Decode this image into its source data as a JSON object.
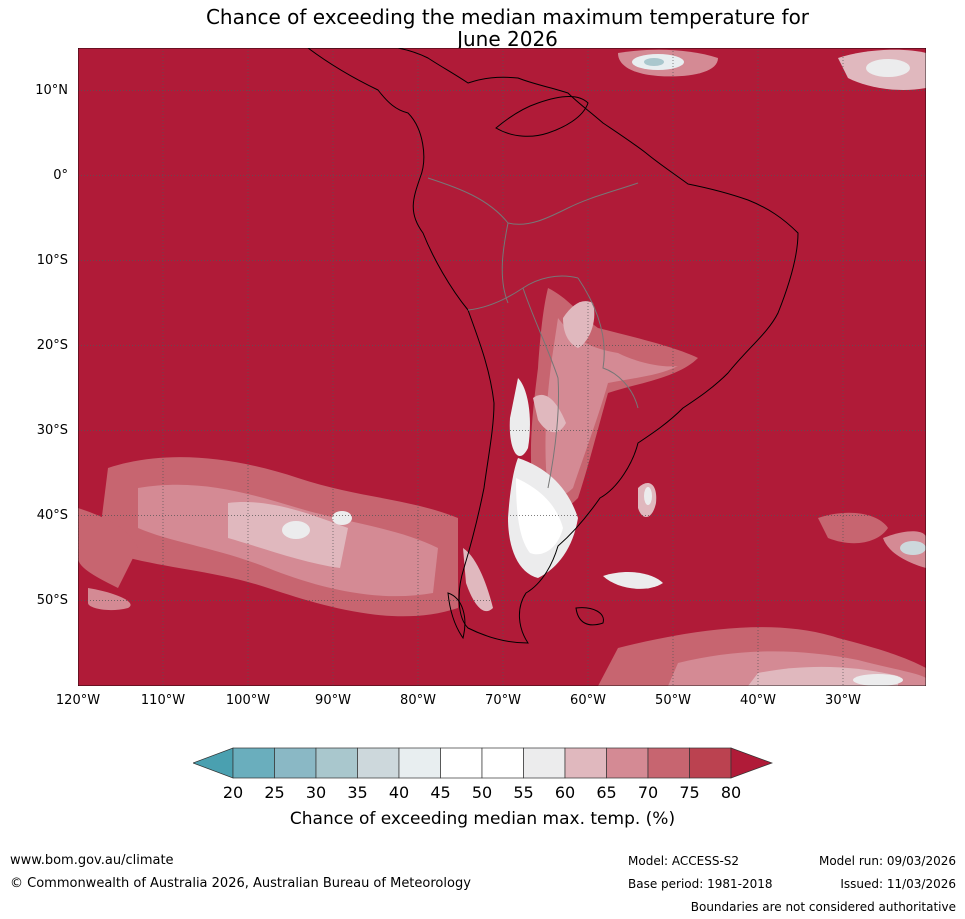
{
  "title": {
    "line1": "Chance of exceeding the median maximum temperature for",
    "line2": "June 2026"
  },
  "map": {
    "lat_labels": [
      "10°N",
      "0°",
      "10°S",
      "20°S",
      "30°S",
      "40°S",
      "50°S"
    ],
    "lon_labels": [
      "120°W",
      "110°W",
      "100°W",
      "90°W",
      "80°W",
      "70°W",
      "60°W",
      "50°W",
      "40°W",
      "30°W"
    ],
    "lon_range": [
      -120,
      -20
    ],
    "lat_range": [
      -60,
      15
    ],
    "background_color": "#b01b38"
  },
  "legend": {
    "ticks": [
      "20",
      "25",
      "30",
      "35",
      "40",
      "45",
      "50",
      "55",
      "60",
      "65",
      "70",
      "75",
      "80"
    ],
    "colors": [
      "#4aa0b0",
      "#6aaebd",
      "#8ab8c5",
      "#a9c7cd",
      "#cdd8dc",
      "#e8eef0",
      "#ffffff",
      "#ffffff",
      "#ececed",
      "#e0b8be",
      "#d48a94",
      "#c76570",
      "#bb4250",
      "#b01b38"
    ],
    "title": "Chance of exceeding median max. temp. (%)"
  },
  "footer": {
    "website": "www.bom.gov.au/climate",
    "copyright": "© Commonwealth of Australia 2026, Australian Bureau of Meteorology",
    "model": "Model: ACCESS-S2",
    "base_period": "Base period: 1981-2018",
    "model_run": "Model run: 09/03/2026",
    "issued": "Issued: 11/03/2026",
    "disclaimer": "Boundaries are not considered authoritative"
  }
}
